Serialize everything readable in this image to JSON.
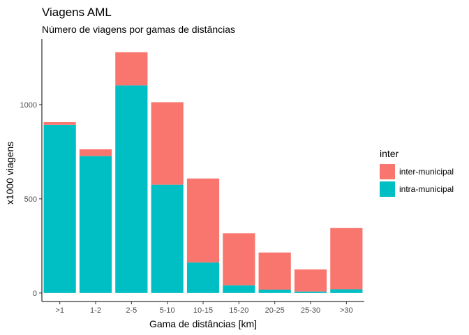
{
  "chart_data": {
    "type": "bar",
    "stacked": true,
    "title": "Viagens AML",
    "subtitle": "Número de viagens por gamas de distâncias",
    "xlabel": "Gama de distâncias [km]",
    "ylabel": "x1000 viagens",
    "categories": [
      ">1",
      "1-2",
      "2-5",
      "5-10",
      "10-15",
      "15-20",
      "20-25",
      "25-30",
      ">30"
    ],
    "ylim": [
      -45,
      1348
    ],
    "yticks": [
      0,
      500,
      1000
    ],
    "legend": {
      "title": "inter",
      "position": "right"
    },
    "series": [
      {
        "name": "intra-municipal",
        "color": "#00BFC4",
        "values": [
          893,
          727,
          1102,
          575,
          162,
          41,
          18,
          8,
          20
        ]
      },
      {
        "name": "inter-municipal",
        "color": "#F8766D",
        "values": [
          14,
          36,
          176,
          438,
          446,
          276,
          197,
          117,
          325
        ]
      }
    ]
  }
}
